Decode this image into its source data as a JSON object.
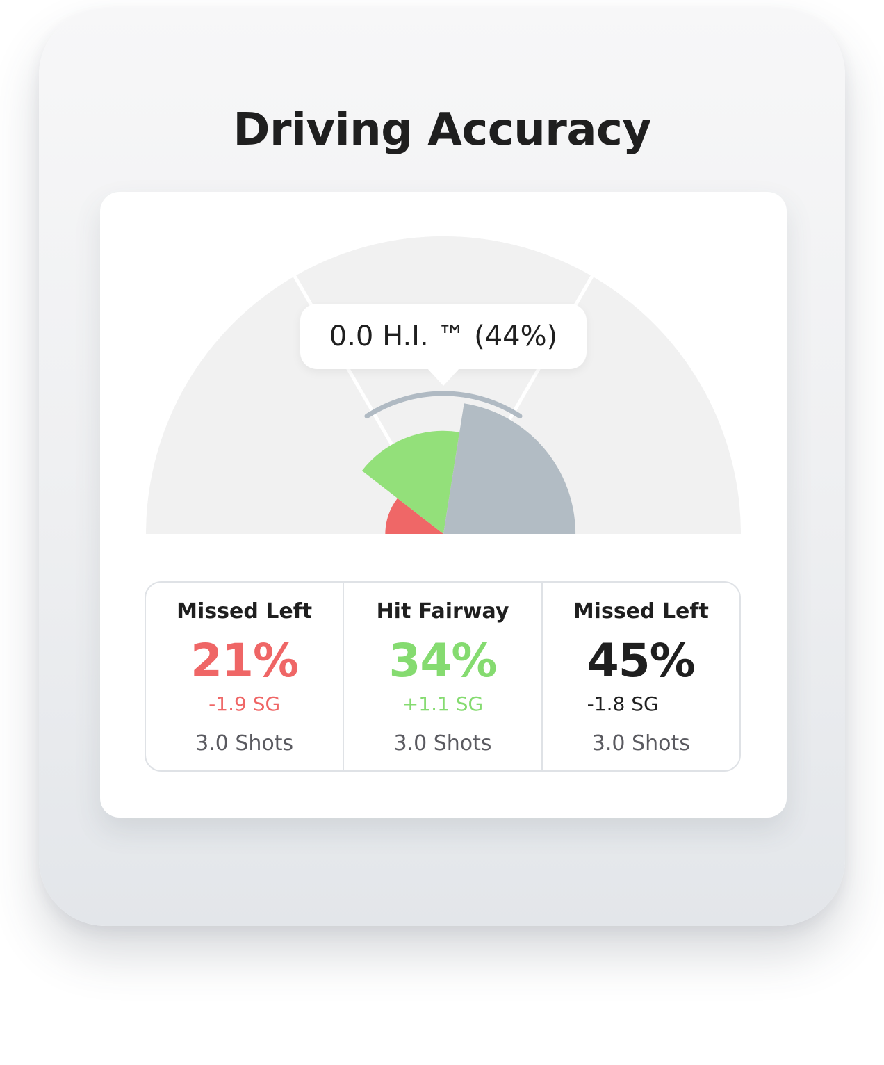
{
  "title": "Driving Accuracy",
  "tooltip": {
    "text": "0.0 H.I. ™ (44%)"
  },
  "colors": {
    "missed_left_red": "#EF6767",
    "hit_fairway_green": "#93E07A",
    "missed_right_gray": "#B2BCC4",
    "gauge_background": "#F1F1F1",
    "range_arc": "#B0BAC3"
  },
  "chart_data": {
    "type": "pie",
    "style": "half-donut-gauge",
    "categories": [
      "Missed Left",
      "Hit Fairway",
      "Missed Left"
    ],
    "values": [
      21,
      34,
      45
    ],
    "value_unit": "%",
    "highlight": "0.0 H.I. ™ (44%)"
  },
  "stats": [
    {
      "label": "Missed Left",
      "value": "21%",
      "sg": "-1.9 SG",
      "shots": "3.0 Shots",
      "tone": "red"
    },
    {
      "label": "Hit Fairway",
      "value": "34%",
      "sg": "+1.1 SG",
      "shots": "3.0 Shots",
      "tone": "green"
    },
    {
      "label": "Missed Left",
      "value": "45%",
      "sg": "-1.8 SG",
      "shots": "3.0 Shots",
      "tone": "dark"
    }
  ]
}
